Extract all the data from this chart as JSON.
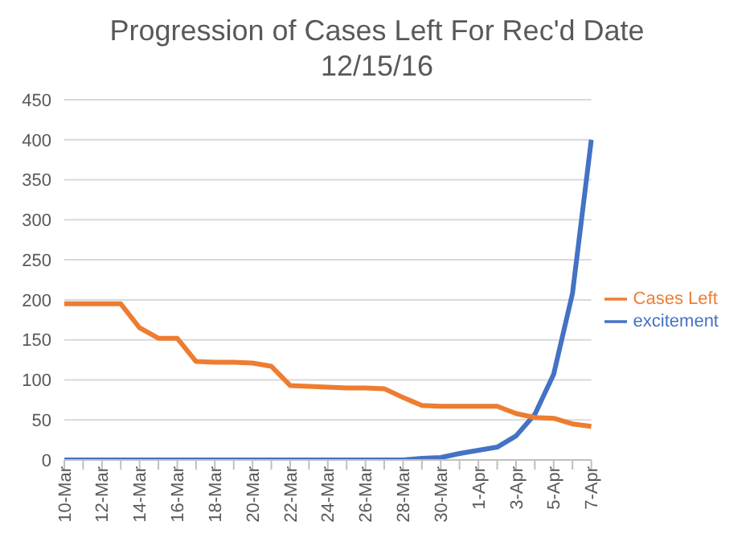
{
  "chart_data": {
    "type": "line",
    "title": "Progression of Cases Left For Rec'd Date",
    "subtitle": "12/15/16",
    "categories": [
      "10-Mar",
      null,
      "12-Mar",
      null,
      "14-Mar",
      null,
      "16-Mar",
      null,
      "18-Mar",
      null,
      "20-Mar",
      null,
      "22-Mar",
      null,
      "24-Mar",
      null,
      "26-Mar",
      null,
      "28-Mar",
      null,
      "30-Mar",
      null,
      "1-Apr",
      null,
      "3-Apr",
      null,
      "5-Apr",
      null,
      "7-Apr"
    ],
    "series": [
      {
        "name": "excitement",
        "color": "#4472c4",
        "values": [
          0,
          0,
          0,
          0,
          0,
          0,
          0,
          0,
          0,
          0,
          0,
          0,
          0,
          0,
          0,
          0,
          0,
          0,
          0,
          2,
          3,
          8,
          12,
          16,
          30,
          57,
          107,
          208,
          400
        ]
      },
      {
        "name": "Cases Left",
        "color": "#ed7d31",
        "values": [
          195,
          195,
          195,
          195,
          165,
          152,
          152,
          123,
          122,
          122,
          121,
          117,
          93,
          92,
          91,
          90,
          90,
          89,
          78,
          68,
          67,
          67,
          67,
          67,
          58,
          53,
          52,
          45,
          42
        ]
      }
    ],
    "ylim": [
      0,
      450
    ],
    "yticks": [
      0,
      50,
      100,
      150,
      200,
      250,
      300,
      350,
      400,
      450
    ],
    "grid": "y",
    "legend": "right",
    "marker": "none",
    "line_style": "solid"
  }
}
